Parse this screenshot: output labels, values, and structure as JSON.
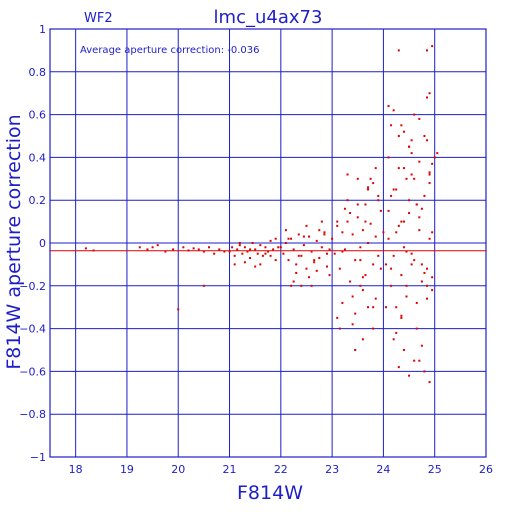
{
  "chart_data": {
    "type": "scatter",
    "title": "lmc_u4ax73",
    "chip_label": "WF2",
    "annotation": "Average aperture correction:  -0.036",
    "xlabel": "F814W",
    "ylabel": "F814W aperture correction",
    "xlim": [
      17.5,
      26
    ],
    "ylim": [
      -1,
      1
    ],
    "xticks": [
      "18",
      "19",
      "20",
      "21",
      "22",
      "23",
      "24",
      "25",
      "26"
    ],
    "yticks": [
      "1",
      "0.8",
      "0.6",
      "0.4",
      "0.2",
      "0",
      "−0.2",
      "−0.4",
      "−0.6",
      "−0.8",
      "−1"
    ],
    "grid": true,
    "mean_line": -0.036,
    "colors": {
      "axes": "#1e1ec8",
      "points": "#e00000",
      "mean_line": "#e00000"
    },
    "series": [
      {
        "x": [
          18.2,
          18.35,
          19.25,
          19.4,
          19.5,
          19.6,
          19.75,
          19.9,
          20.1,
          20.2,
          20.3,
          20.4,
          20.5,
          20.6,
          20.7,
          20.8,
          20.9,
          20.0,
          20.5,
          21.0,
          21.05,
          21.1,
          21.15,
          21.2,
          21.25,
          21.3,
          21.35,
          21.4,
          21.45,
          21.5,
          21.55,
          21.6,
          21.65,
          21.7,
          21.75,
          21.8,
          21.85,
          21.9,
          21.95,
          21.1,
          21.3,
          21.5,
          21.7,
          21.9,
          21.6,
          21.8,
          21.4,
          21.2,
          22.0,
          22.05,
          22.1,
          22.15,
          22.2,
          22.25,
          22.3,
          22.35,
          22.4,
          22.45,
          22.5,
          22.55,
          22.6,
          22.65,
          22.7,
          22.75,
          22.8,
          22.85,
          22.9,
          22.95,
          22.1,
          22.3,
          22.5,
          22.7,
          22.9,
          22.2,
          22.4,
          22.6,
          22.8,
          22.15,
          22.35,
          22.55,
          22.75,
          22.95,
          22.45,
          22.65,
          22.85,
          22.25,
          23.0,
          23.05,
          23.1,
          23.15,
          23.2,
          23.25,
          23.3,
          23.35,
          23.4,
          23.45,
          23.5,
          23.55,
          23.6,
          23.65,
          23.7,
          23.75,
          23.8,
          23.85,
          23.9,
          23.95,
          23.1,
          23.2,
          23.3,
          23.4,
          23.5,
          23.6,
          23.7,
          23.8,
          23.9,
          23.15,
          23.35,
          23.55,
          23.75,
          23.95,
          23.25,
          23.45,
          23.65,
          23.85,
          23.4,
          23.5,
          23.6,
          23.7,
          23.8,
          23.3,
          23.45,
          23.65,
          23.55,
          23.85,
          23.7,
          23.9,
          23.6,
          23.8,
          23.2,
          23.1,
          24.0,
          24.05,
          24.1,
          24.15,
          24.2,
          24.25,
          24.3,
          24.35,
          24.4,
          24.45,
          24.5,
          24.55,
          24.6,
          24.65,
          24.7,
          24.75,
          24.8,
          24.85,
          24.9,
          24.95,
          24.1,
          24.2,
          24.3,
          24.4,
          24.5,
          24.6,
          24.7,
          24.8,
          24.9,
          24.15,
          24.35,
          24.55,
          24.75,
          24.95,
          24.25,
          24.45,
          24.65,
          24.85,
          24.1,
          24.2,
          24.3,
          24.4,
          24.5,
          24.6,
          24.7,
          24.8,
          24.9,
          24.15,
          24.35,
          24.55,
          24.75,
          24.95,
          24.25,
          24.45,
          24.65,
          24.85,
          24.05,
          24.25,
          24.45,
          24.65,
          24.85,
          24.15,
          24.35,
          24.55,
          24.75,
          24.95,
          24.3,
          24.85,
          24.95,
          24.9,
          24.85,
          24.1,
          24.4,
          24.6,
          24.35,
          24.55,
          24.7,
          24.2,
          24.5,
          24.8,
          25.0,
          25.05,
          24.9,
          24.3,
          24.5,
          24.7,
          24.9,
          24.4
        ],
        "y": [
          -0.025,
          -0.035,
          -0.02,
          -0.03,
          -0.02,
          -0.01,
          -0.04,
          -0.03,
          -0.02,
          -0.035,
          -0.025,
          -0.03,
          -0.04,
          -0.02,
          -0.05,
          -0.03,
          -0.04,
          -0.31,
          -0.2,
          -0.04,
          -0.02,
          -0.06,
          -0.03,
          -0.01,
          -0.05,
          -0.02,
          -0.04,
          -0.07,
          0.0,
          -0.03,
          -0.05,
          -0.01,
          -0.06,
          -0.02,
          -0.04,
          0.01,
          -0.03,
          -0.08,
          -0.02,
          -0.1,
          -0.09,
          -0.11,
          -0.05,
          0.02,
          -0.1,
          -0.06,
          -0.03,
          0.0,
          -0.02,
          -0.05,
          0.0,
          -0.08,
          0.02,
          -0.03,
          -0.1,
          0.04,
          -0.06,
          -0.01,
          -0.12,
          0.03,
          -0.04,
          -0.09,
          0.01,
          -0.07,
          -0.02,
          0.05,
          -0.11,
          -0.03,
          0.06,
          -0.14,
          0.08,
          -0.13,
          -0.05,
          -0.2,
          -0.2,
          -0.2,
          0.1,
          0.02,
          -0.06,
          -0.16,
          0.06,
          -0.15,
          0.03,
          -0.08,
          0.04,
          -0.18,
          0.02,
          -0.05,
          0.08,
          -0.12,
          0.05,
          -0.03,
          0.1,
          -0.18,
          0.04,
          -0.08,
          0.12,
          -0.02,
          0.06,
          -0.15,
          0.0,
          0.09,
          -0.1,
          0.03,
          -0.06,
          0.15,
          -0.35,
          -0.28,
          0.2,
          -0.25,
          0.18,
          -0.22,
          0.25,
          -0.3,
          0.22,
          -0.4,
          0.14,
          -0.2,
          0.3,
          -0.12,
          0.16,
          -0.33,
          0.1,
          -0.26,
          -0.38,
          0.3,
          -0.45,
          0.26,
          -0.4,
          0.32,
          -0.5,
          0.18,
          -0.08,
          0.35,
          -0.3,
          0.2,
          -0.16,
          0.28,
          -0.04,
          0.1,
          0.05,
          -0.1,
          0.15,
          -0.2,
          0.25,
          -0.3,
          0.35,
          -0.15,
          0.1,
          -0.25,
          0.2,
          -0.05,
          0.3,
          -0.4,
          0.12,
          -0.18,
          0.22,
          -0.12,
          0.28,
          -0.22,
          0.4,
          -0.45,
          0.5,
          -0.5,
          0.45,
          -0.55,
          0.38,
          -0.6,
          0.33,
          0.55,
          -0.35,
          0.42,
          -0.48,
          0.37,
          -0.42,
          0.3,
          -0.28,
          0.48,
          0.02,
          -0.06,
          0.08,
          -0.02,
          0.14,
          -0.08,
          0.06,
          -0.14,
          0.02,
          -0.12,
          0.1,
          -0.1,
          0.16,
          -0.16,
          0.05,
          -0.04,
          0.18,
          -0.2,
          -0.3,
          0.25,
          -0.2,
          0.18,
          -0.26,
          0.22,
          -0.34,
          0.32,
          -0.1,
          0.05,
          0.9,
          0.9,
          0.92,
          0.7,
          0.68,
          0.64,
          0.52,
          0.6,
          0.55,
          0.48,
          0.58,
          0.62,
          0.45,
          0.5,
          0.4,
          0.42,
          -0.65,
          -0.58,
          -0.62,
          -0.55,
          0.32,
          0.35
        ]
      }
    ]
  }
}
